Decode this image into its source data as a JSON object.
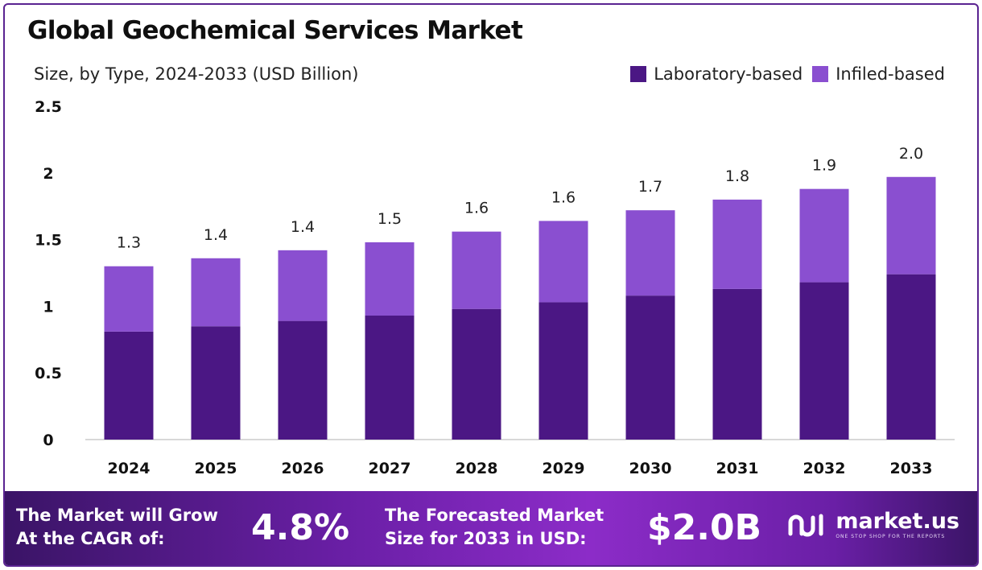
{
  "title": "Global Geochemical Services Market",
  "subtitle": "Size, by Type, 2024-2033 (USD Billion)",
  "colors": {
    "laboratory": "#4b1784",
    "infield": "#8a4fd0",
    "axis": "#cccccc",
    "text": "#111111"
  },
  "chart_data": {
    "type": "bar",
    "stacked": true,
    "categories": [
      "2024",
      "2025",
      "2026",
      "2027",
      "2028",
      "2029",
      "2030",
      "2031",
      "2032",
      "2033"
    ],
    "series": [
      {
        "name": "Laboratory-based",
        "values": [
          0.81,
          0.85,
          0.89,
          0.93,
          0.98,
          1.03,
          1.08,
          1.13,
          1.18,
          1.24
        ]
      },
      {
        "name": "Infiled-based",
        "values": [
          0.49,
          0.51,
          0.53,
          0.55,
          0.58,
          0.61,
          0.64,
          0.67,
          0.7,
          0.73
        ]
      }
    ],
    "totals_labels": [
      "1.3",
      "1.4",
      "1.4",
      "1.5",
      "1.6",
      "1.6",
      "1.7",
      "1.8",
      "1.9",
      "2.0"
    ],
    "yticks": [
      "0",
      "0.5",
      "1",
      "1.5",
      "2",
      "2.5"
    ],
    "ylim": [
      0,
      2.5
    ],
    "xlabel": "",
    "ylabel": "",
    "grid": false,
    "legend_position": "top-right"
  },
  "footer": {
    "cagr_text_line1": "The Market will Grow",
    "cagr_text_line2": "At the CAGR of:",
    "cagr_value": "4.8%",
    "forecast_text_line1": "The Forecasted Market",
    "forecast_text_line2": "Size for 2033 in USD:",
    "forecast_value": "$2.0B",
    "brand_name": "market.us",
    "brand_tagline": "ONE STOP SHOP FOR THE REPORTS"
  }
}
